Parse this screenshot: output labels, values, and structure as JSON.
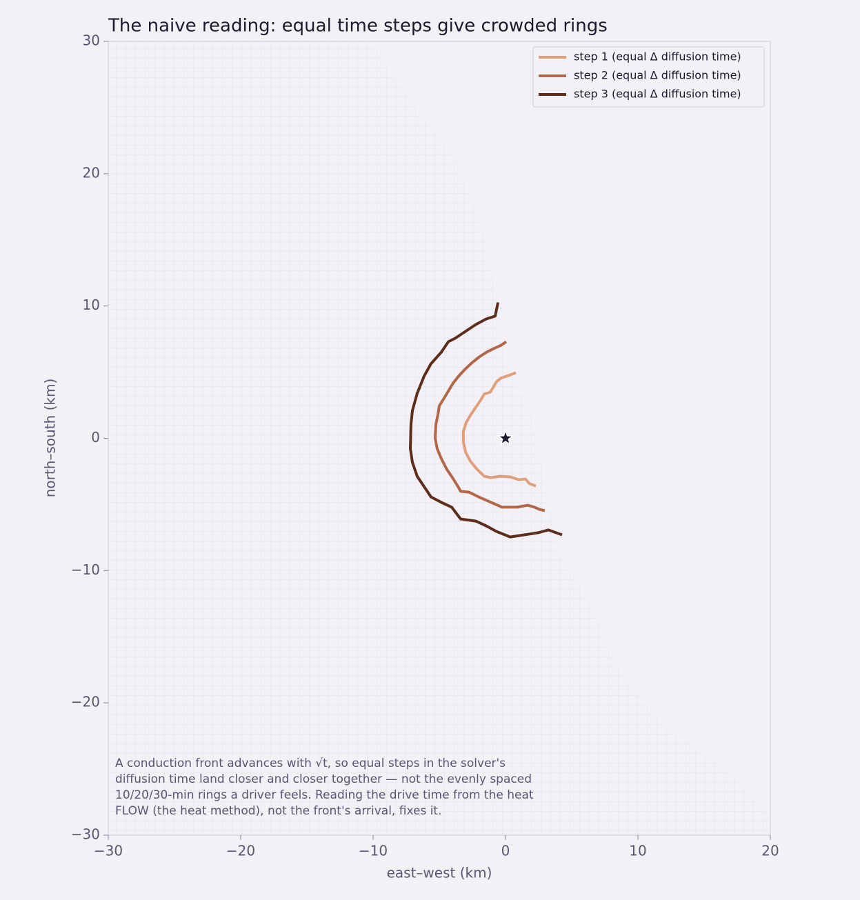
{
  "chart_data": {
    "type": "line",
    "title": "The naive reading: equal time steps give crowded rings",
    "xlabel": "east–west (km)",
    "ylabel": "north–south (km)",
    "xlim": [
      -30,
      20
    ],
    "ylim": [
      -30,
      30
    ],
    "xticks": [
      {
        "value": -30,
        "label": "−30"
      },
      {
        "value": -20,
        "label": "−20"
      },
      {
        "value": -10,
        "label": "−10"
      },
      0,
      10,
      20
    ],
    "yticks": [
      {
        "value": -30,
        "label": "−30"
      },
      {
        "value": -20,
        "label": "−20"
      },
      {
        "value": -10,
        "label": "−10"
      },
      0,
      10,
      20,
      30
    ],
    "legend": "upper right",
    "series": [
      {
        "name": "step 1 (equal Δ diffusion time)",
        "color": "#dea07c",
        "x": [
          0.78,
          0.21,
          -0.36,
          -0.68,
          -0.89,
          -1.15,
          -1.61,
          -1.88,
          -2.24,
          -2.6,
          -2.97,
          -3.18,
          -3.18,
          -3.02,
          -2.66,
          -2.14,
          -1.61,
          -1.09,
          -0.42,
          0.36,
          0.99,
          1.51,
          1.82,
          2.29
        ],
        "values": [
          4.95,
          4.74,
          4.54,
          4.28,
          3.91,
          3.49,
          3.34,
          2.87,
          2.35,
          1.82,
          1.2,
          0.52,
          -0.26,
          -1.04,
          -1.72,
          -2.35,
          -2.87,
          -2.97,
          -2.87,
          -2.92,
          -3.13,
          -3.08,
          -3.44,
          -3.6
        ]
      },
      {
        "name": "step 2 (equal Δ diffusion time)",
        "color": "#b0674a",
        "x": [
          0.05,
          -0.31,
          -0.89,
          -1.41,
          -1.98,
          -2.5,
          -3.07,
          -3.54,
          -3.96,
          -4.27,
          -4.58,
          -5.0,
          -5.1,
          -5.26,
          -5.31,
          -5.16,
          -4.84,
          -4.43,
          -4.01,
          -3.59,
          -3.39,
          -2.76,
          -2.03,
          -1.2,
          -0.26,
          0.89,
          1.67,
          2.19,
          2.55,
          2.97
        ],
        "values": [
          7.3,
          7.04,
          6.78,
          6.52,
          6.15,
          5.74,
          5.21,
          4.69,
          4.17,
          3.65,
          3.13,
          2.45,
          1.82,
          1.04,
          0,
          -0.78,
          -1.56,
          -2.35,
          -2.97,
          -3.65,
          -4.01,
          -4.07,
          -4.43,
          -4.8,
          -5.21,
          -5.21,
          -5.06,
          -5.21,
          -5.37,
          -5.47
        ]
      },
      {
        "name": "step 3 (equal Δ diffusion time)",
        "color": "#5c2e1c",
        "x": [
          -0.57,
          -0.78,
          -1.46,
          -2.24,
          -3.02,
          -3.8,
          -4.32,
          -4.84,
          -5.63,
          -6.15,
          -6.67,
          -7.03,
          -7.14,
          -7.19,
          -7.03,
          -6.67,
          -6.15,
          -5.63,
          -4.84,
          -4.06,
          -3.39,
          -2.24,
          -1.46,
          -0.68,
          0.36,
          1.41,
          2.45,
          3.23,
          4.27
        ],
        "values": [
          10.27,
          9.23,
          9.02,
          8.6,
          8.08,
          7.56,
          7.3,
          6.52,
          5.63,
          4.69,
          3.39,
          2.09,
          1.04,
          -0.78,
          -1.82,
          -2.87,
          -3.65,
          -4.43,
          -4.85,
          -5.21,
          -6.1,
          -6.26,
          -6.62,
          -7.04,
          -7.46,
          -7.3,
          -7.14,
          -6.93,
          -7.3
        ]
      }
    ],
    "marker": {
      "x": 0,
      "y": 0,
      "color": "#1e1a2e"
    },
    "annotation": [
      "A conduction front advances with √t, so equal steps in the solver's",
      "diffusion time land closer and closer together — not the evenly spaced",
      "10/20/30-min rings a driver feels. Reading the drive time from the heat",
      "FLOW (the heat method), not the front's arrival, fixes it."
    ]
  }
}
